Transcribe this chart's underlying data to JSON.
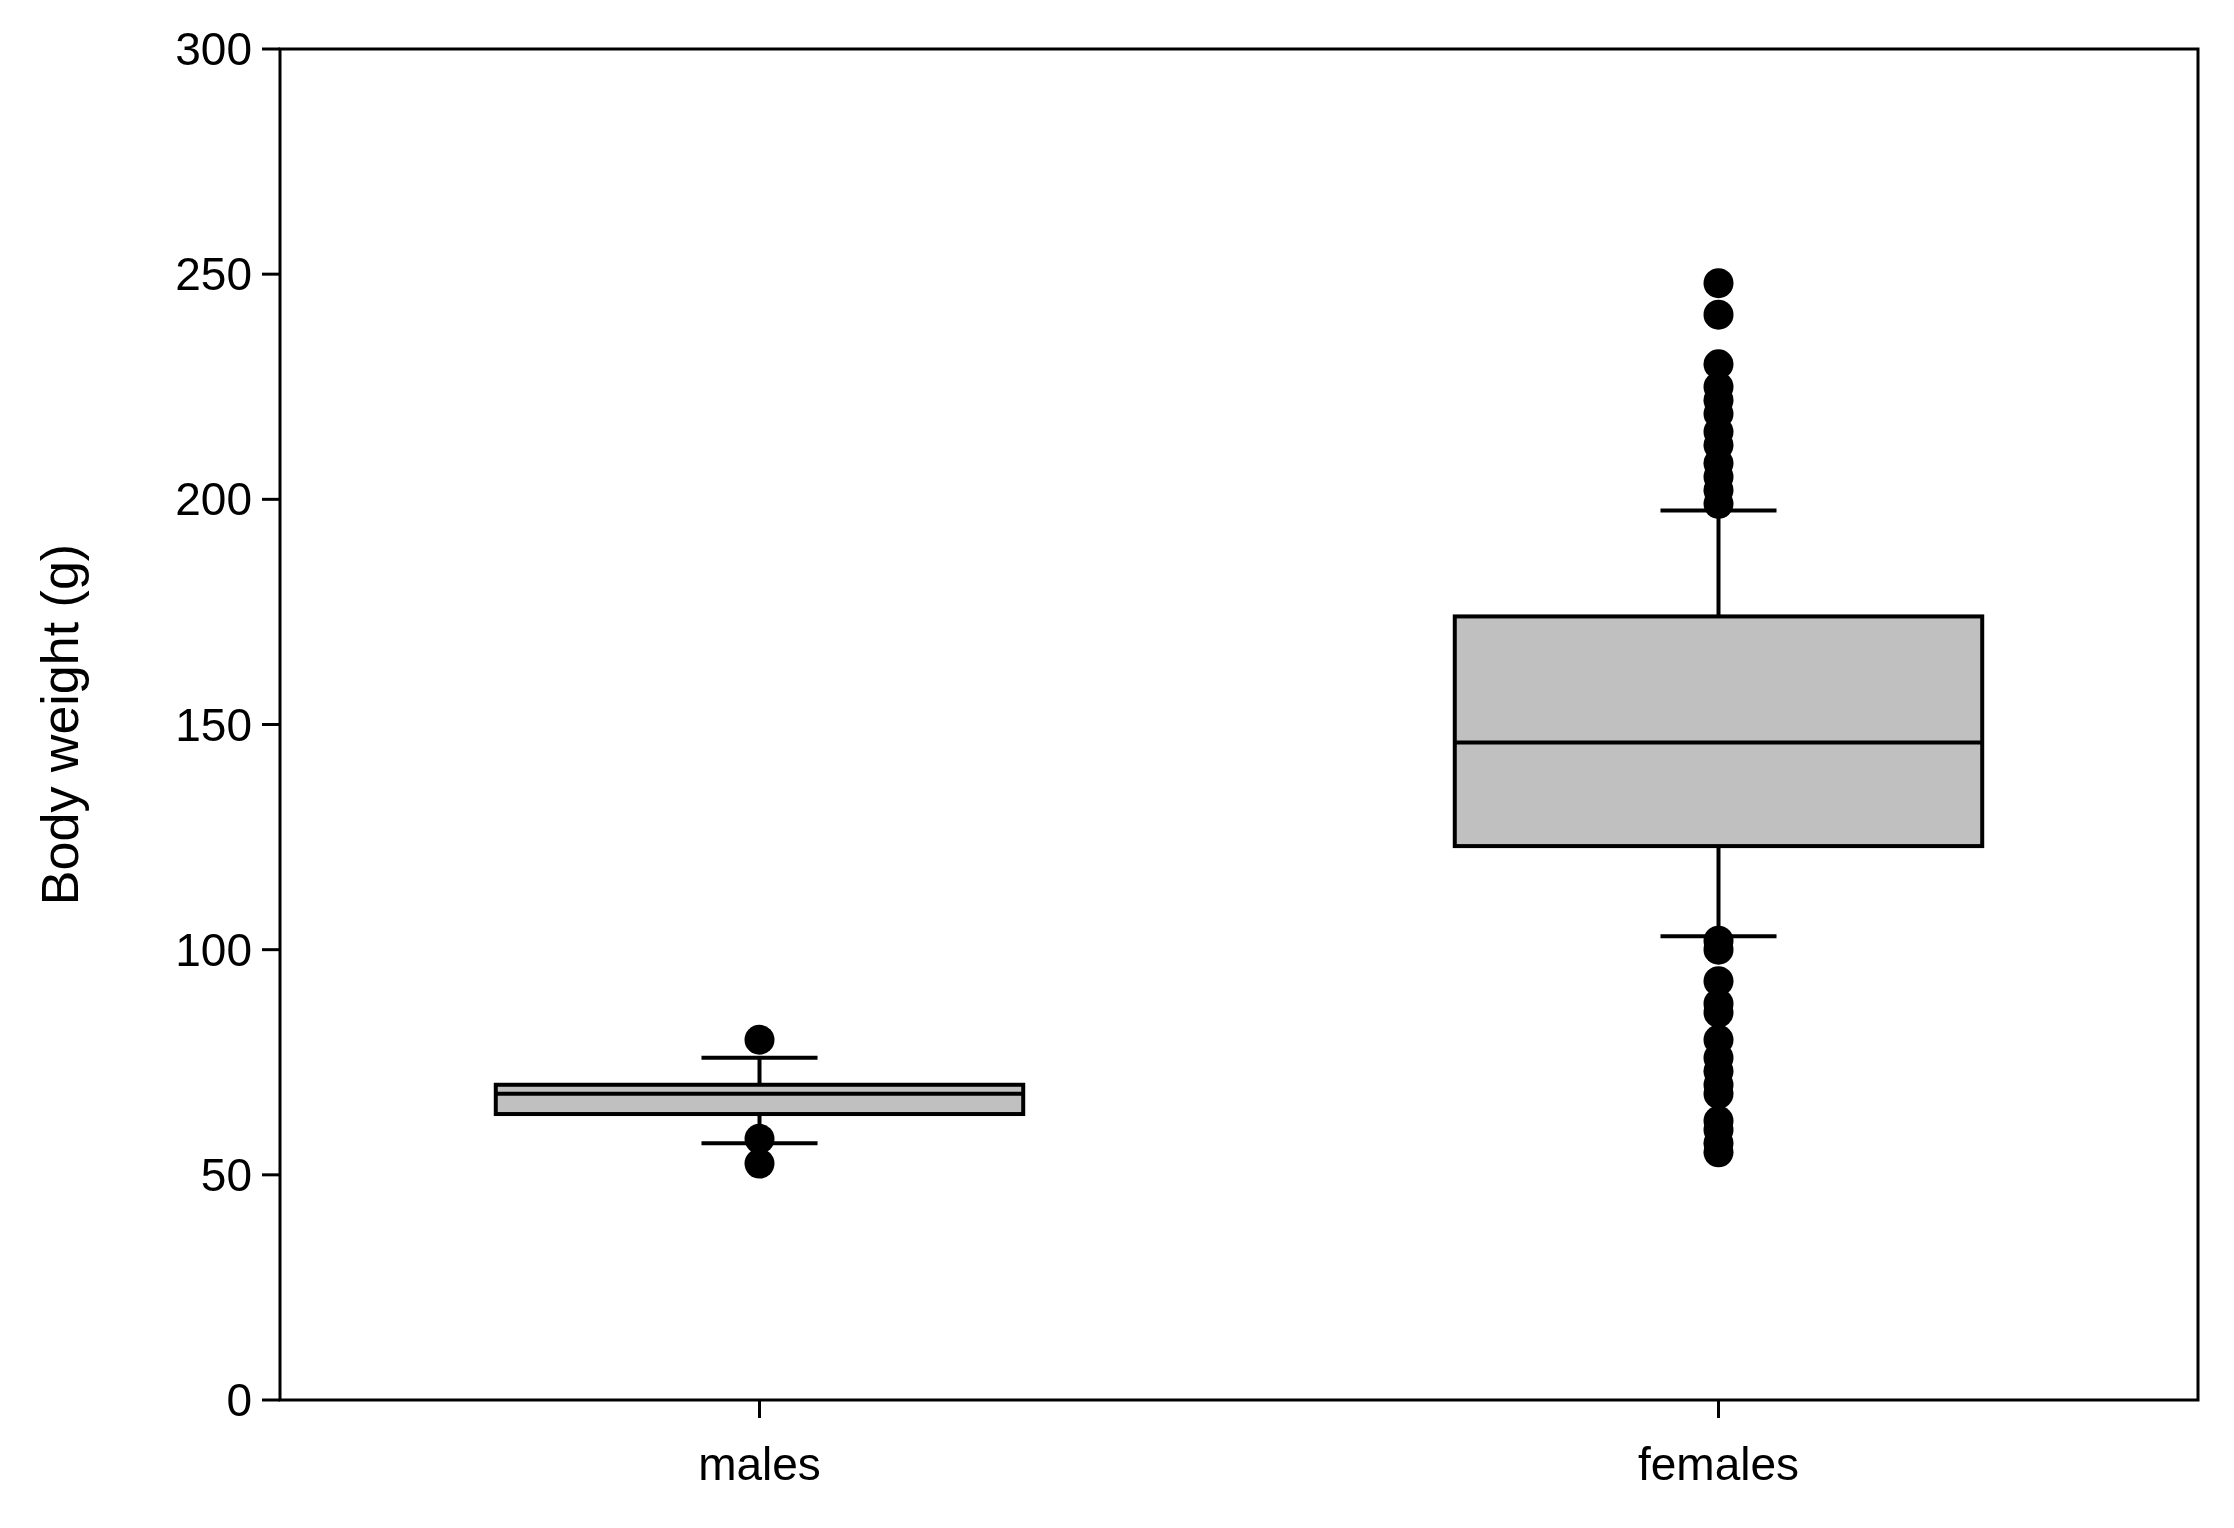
{
  "chart_data": {
    "type": "box",
    "ylabel": "Body weight (g)",
    "categories": [
      "males",
      "females"
    ],
    "color": "#c0c0c0",
    "boxes": [
      {
        "low": 57,
        "q1": 63.5,
        "median": 68,
        "q3": 70,
        "high": 76,
        "outliers": [
          80,
          58,
          52.5
        ]
      },
      {
        "low": 103,
        "q1": 123,
        "median": 146,
        "q3": 174,
        "high": 197.5,
        "outliers": [
          248,
          241,
          230,
          225,
          222,
          219,
          215,
          212,
          208,
          205,
          202,
          199,
          102,
          100,
          93,
          88,
          86,
          80,
          76,
          73,
          70,
          68,
          62,
          60,
          57,
          55
        ]
      }
    ],
    "ylim": [
      0,
      300
    ],
    "yticks": [
      0,
      50,
      100,
      150,
      200,
      250,
      300
    ],
    "grid": false
  }
}
